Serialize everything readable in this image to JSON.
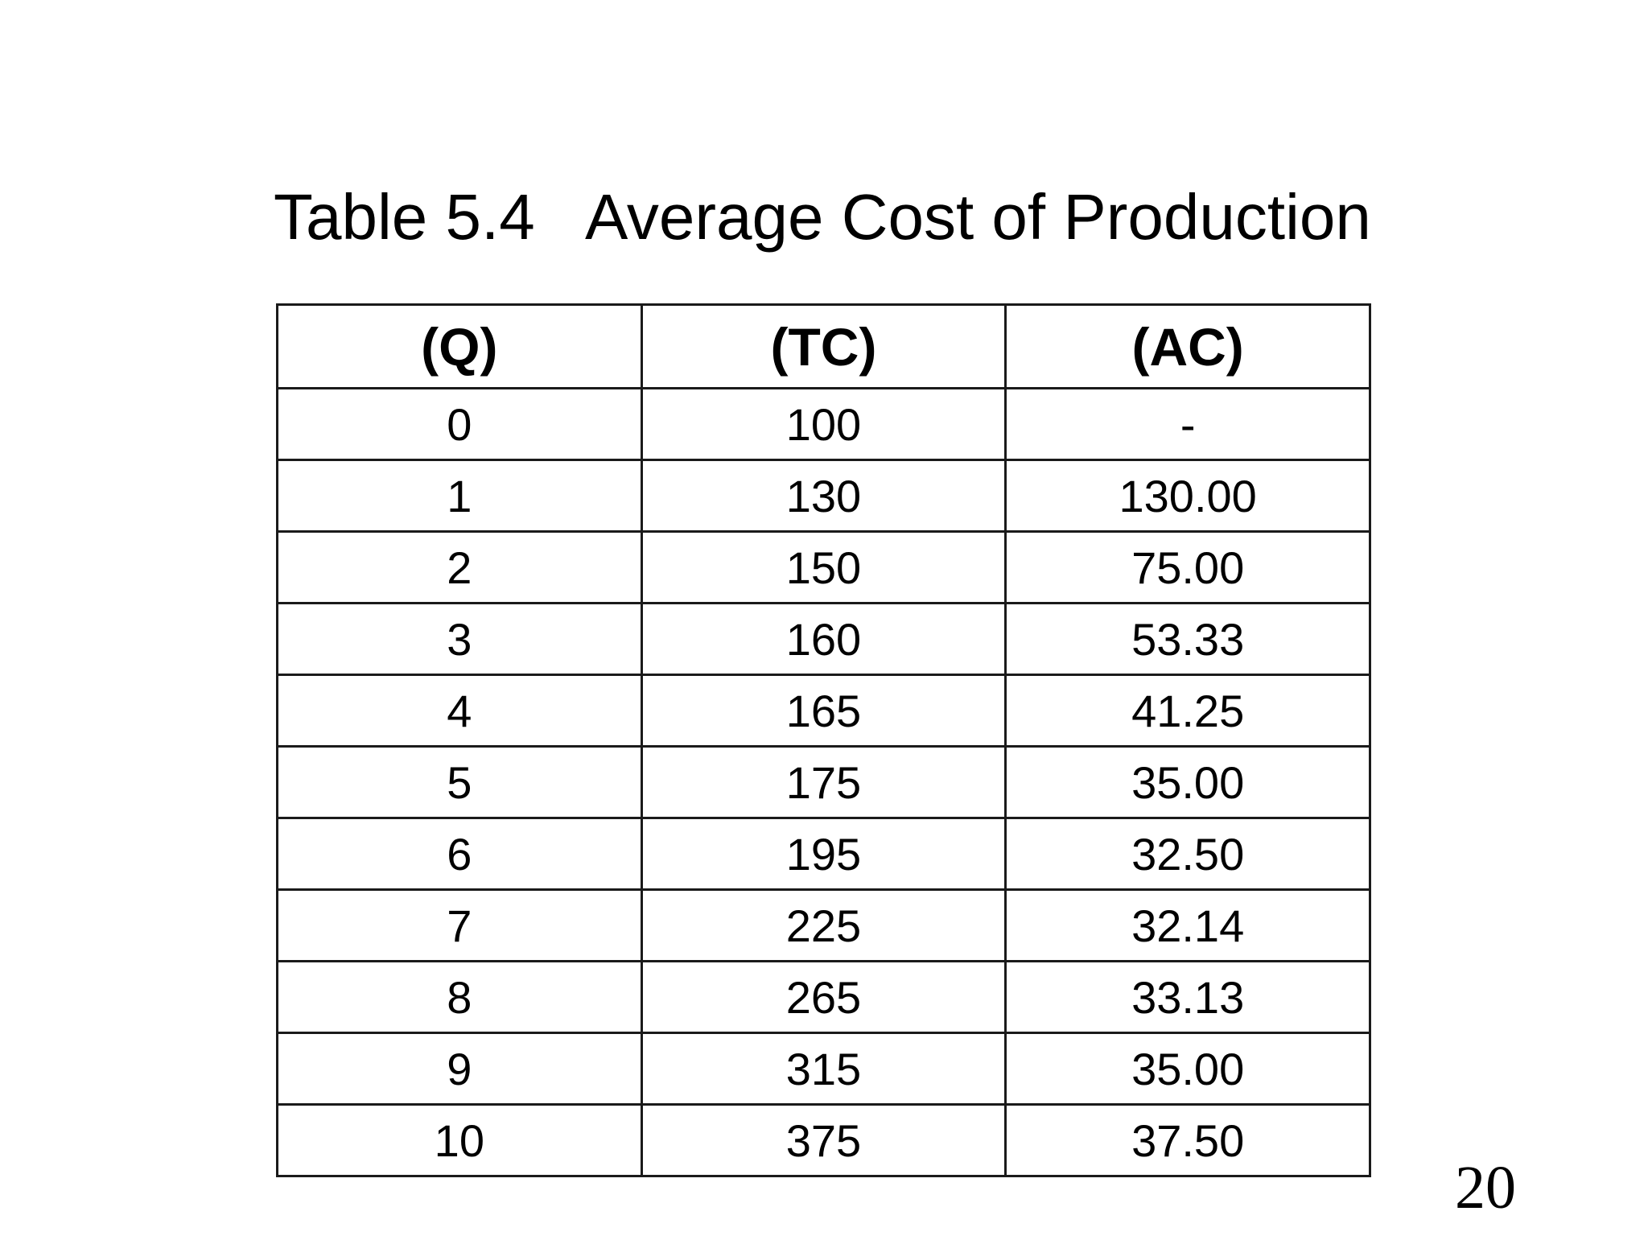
{
  "slide": {
    "title": "Table 5.4   Average Cost of Production",
    "page_number": "20"
  },
  "table": {
    "headers": [
      "(Q)",
      "(TC)",
      "(AC)"
    ],
    "rows": [
      [
        "0",
        "100",
        "-"
      ],
      [
        "1",
        "130",
        "130.00"
      ],
      [
        "2",
        "150",
        "75.00"
      ],
      [
        "3",
        "160",
        "53.33"
      ],
      [
        "4",
        "165",
        "41.25"
      ],
      [
        "5",
        "175",
        "35.00"
      ],
      [
        "6",
        "195",
        "32.50"
      ],
      [
        "7",
        "225",
        "32.14"
      ],
      [
        "8",
        "265",
        "33.13"
      ],
      [
        "9",
        "315",
        "35.00"
      ],
      [
        "10",
        "375",
        "37.50"
      ]
    ]
  }
}
